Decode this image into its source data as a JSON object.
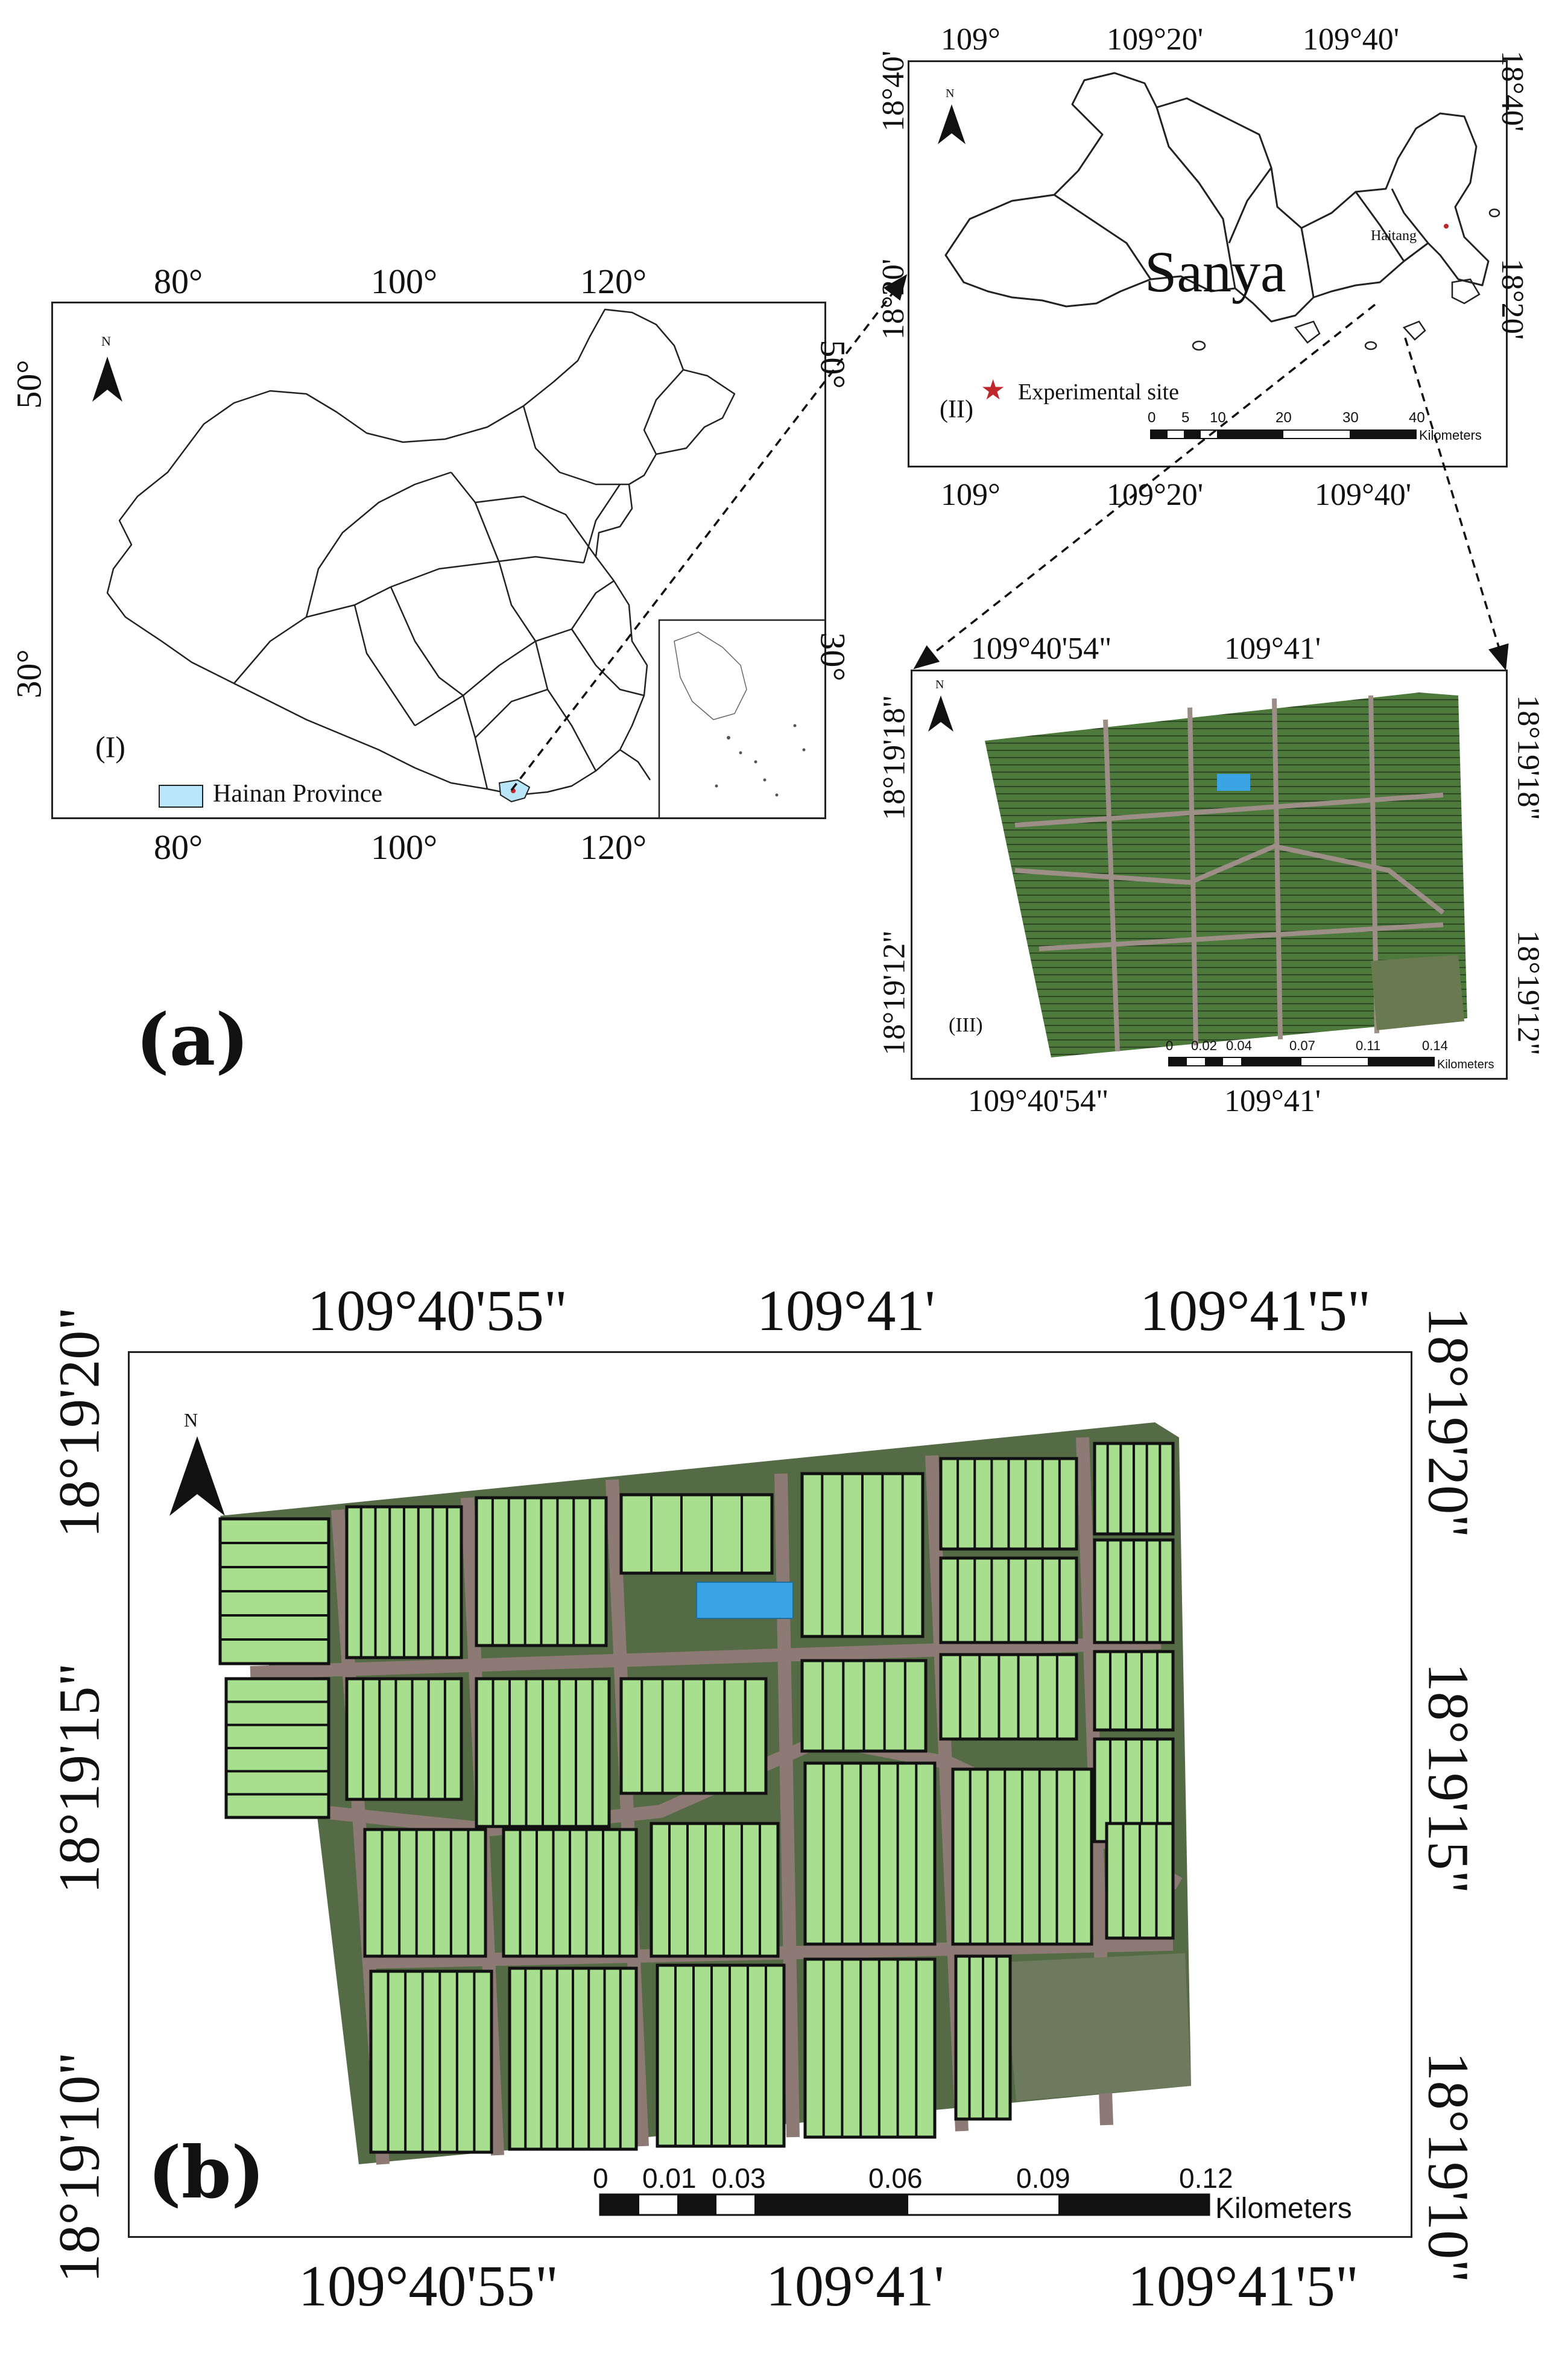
{
  "panel_a": {
    "label": "(a)",
    "map_china": {
      "roman": "(I)",
      "north": "N",
      "legend_label": "Hainan Province",
      "legend_color": "#b9e6f8",
      "top_ticks": [
        "80°",
        "100°",
        "120°"
      ],
      "bottom_ticks": [
        "80°",
        "100°",
        "120°"
      ],
      "left_ticks": [
        "50°",
        "30°"
      ],
      "right_ticks": [
        "50°",
        "30°"
      ]
    },
    "map_sanya": {
      "roman": "(II)",
      "north": "N",
      "city_label": "Sanya",
      "town_label": "Haitang",
      "legend_label": "Experimental site",
      "star_color": "#c0262c",
      "top_ticks": [
        "109°",
        "109°20'",
        "109°40'"
      ],
      "bottom_ticks": [
        "109°",
        "109°20'",
        "109°40'"
      ],
      "left_ticks": [
        "18°40'",
        "18°20'"
      ],
      "right_ticks": [
        "18°40'",
        "18°20'"
      ],
      "scale_values": [
        "0",
        "5",
        "10",
        "20",
        "30",
        "40"
      ],
      "scale_unit": "Kilometers"
    },
    "map_site": {
      "roman": "(III)",
      "north": "N",
      "top_ticks": [
        "109°40'54\"",
        "109°41'"
      ],
      "bottom_ticks": [
        "109°40'54\"",
        "109°41'"
      ],
      "left_ticks": [
        "18°19'18\"",
        "18°19'12\""
      ],
      "right_ticks": [
        "18°19'18\"",
        "18°19'12\""
      ],
      "scale_values": [
        "0",
        "0.02",
        "0.04",
        "0.07",
        "0.11",
        "0.14"
      ],
      "scale_unit": "Kilometers"
    }
  },
  "panel_b": {
    "label": "(b)",
    "north": "N",
    "top_ticks": [
      "109°40'55\"",
      "109°41'",
      "109°41'5\""
    ],
    "bottom_ticks": [
      "109°40'55\"",
      "109°41'",
      "109°41'5\""
    ],
    "left_ticks": [
      "18°19'20\"",
      "18°19'15\"",
      "18°19'10\""
    ],
    "right_ticks": [
      "18°19'20\"",
      "18°19'15\"",
      "18°19'10\""
    ],
    "scale_values": [
      "0",
      "0.01",
      "0.03",
      "0.06",
      "0.09",
      "0.12"
    ],
    "scale_unit": "Kilometers",
    "plot_color": "#a8df8e",
    "plot_border_color": "#111111",
    "road_color": "#8d7a74",
    "pond_color": "#3aa4e4"
  }
}
